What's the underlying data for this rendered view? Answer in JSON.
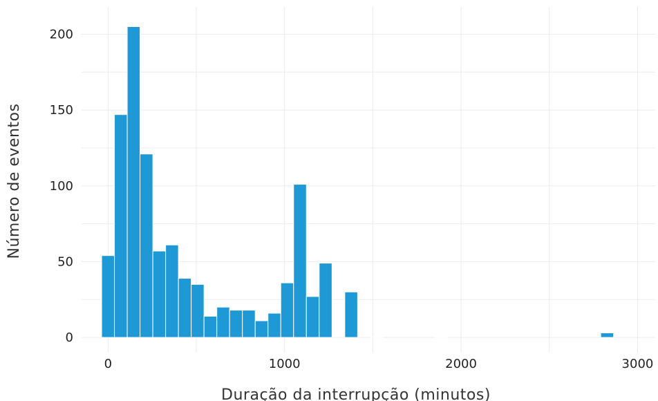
{
  "chart_data": {
    "type": "bar",
    "title": "",
    "xlabel": "Duração da interrupção (minutos)",
    "ylabel": "Número de eventos",
    "xlim": [
      -150,
      3100
    ],
    "ylim": [
      -10,
      218
    ],
    "x_ticks": [
      0,
      1000,
      2000,
      3000
    ],
    "y_ticks": [
      0,
      50,
      100,
      150,
      200
    ],
    "grid": true,
    "bar_color": "#1f98d6",
    "bin_width": 72.5,
    "bins": [
      {
        "x": 0,
        "count": 54
      },
      {
        "x": 72.5,
        "count": 147
      },
      {
        "x": 145,
        "count": 205
      },
      {
        "x": 217.5,
        "count": 121
      },
      {
        "x": 290,
        "count": 57
      },
      {
        "x": 362.5,
        "count": 61
      },
      {
        "x": 435,
        "count": 39
      },
      {
        "x": 507.5,
        "count": 35
      },
      {
        "x": 580,
        "count": 14
      },
      {
        "x": 652.5,
        "count": 20
      },
      {
        "x": 725,
        "count": 18
      },
      {
        "x": 797.5,
        "count": 18
      },
      {
        "x": 870,
        "count": 11
      },
      {
        "x": 942.5,
        "count": 16
      },
      {
        "x": 1015,
        "count": 36
      },
      {
        "x": 1087.5,
        "count": 101
      },
      {
        "x": 1160,
        "count": 27
      },
      {
        "x": 1232.5,
        "count": 49
      },
      {
        "x": 1377.5,
        "count": 30
      },
      {
        "x": 1522.5,
        "count": 0.4
      },
      {
        "x": 1885,
        "count": 0.4
      },
      {
        "x": 2827.5,
        "count": 3
      }
    ]
  }
}
